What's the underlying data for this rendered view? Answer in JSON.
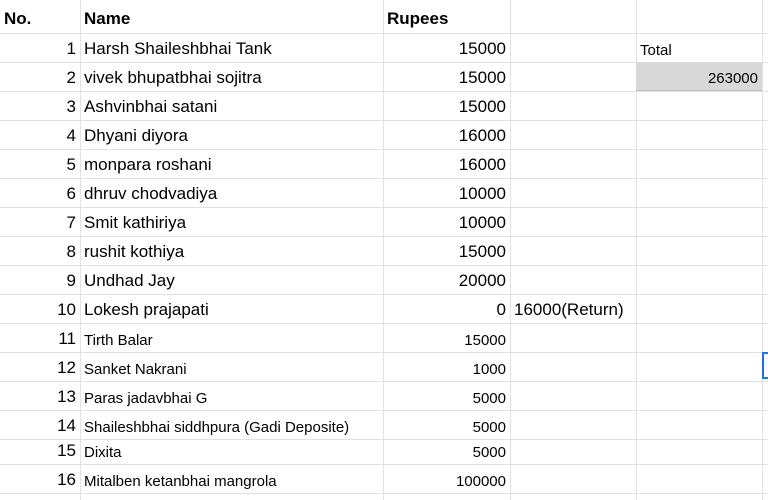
{
  "headers": {
    "no": "No.",
    "name": "Name",
    "rupees": "Rupees"
  },
  "rows": [
    {
      "no": "1",
      "name": "Harsh Shaileshbhai Tank",
      "rupees": "15000",
      "note": ""
    },
    {
      "no": "2",
      "name": "vivek bhupatbhai sojitra",
      "rupees": "15000",
      "note": ""
    },
    {
      "no": "3",
      "name": "Ashvinbhai satani",
      "rupees": "15000",
      "note": ""
    },
    {
      "no": "4",
      "name": "Dhyani diyora",
      "rupees": "16000",
      "note": ""
    },
    {
      "no": "5",
      "name": "monpara roshani",
      "rupees": "16000",
      "note": ""
    },
    {
      "no": "6",
      "name": "dhruv chodvadiya",
      "rupees": "10000",
      "note": ""
    },
    {
      "no": "7",
      "name": "Smit kathiriya",
      "rupees": "10000",
      "note": ""
    },
    {
      "no": "8",
      "name": "rushit kothiya",
      "rupees": "15000",
      "note": ""
    },
    {
      "no": "9",
      "name": "Undhad Jay",
      "rupees": "20000",
      "note": ""
    },
    {
      "no": "10",
      "name": "Lokesh prajapati",
      "rupees": "0",
      "note": "16000(Return)"
    },
    {
      "no": "11",
      "name": "Tirth Balar",
      "rupees": "15000",
      "note": ""
    },
    {
      "no": "12",
      "name": "Sanket Nakrani",
      "rupees": "1000",
      "note": ""
    },
    {
      "no": "13",
      "name": "Paras jadavbhai G",
      "rupees": "5000",
      "note": ""
    },
    {
      "no": "14",
      "name": "Shaileshbhai siddhpura (Gadi Deposite)",
      "rupees": "5000",
      "note": ""
    },
    {
      "no": "15",
      "name": "Dixita",
      "rupees": "5000",
      "note": ""
    },
    {
      "no": "16",
      "name": "Mitalben ketanbhai mangrola",
      "rupees": "100000",
      "note": ""
    }
  ],
  "summary": {
    "label": "Total",
    "value": "263000"
  }
}
